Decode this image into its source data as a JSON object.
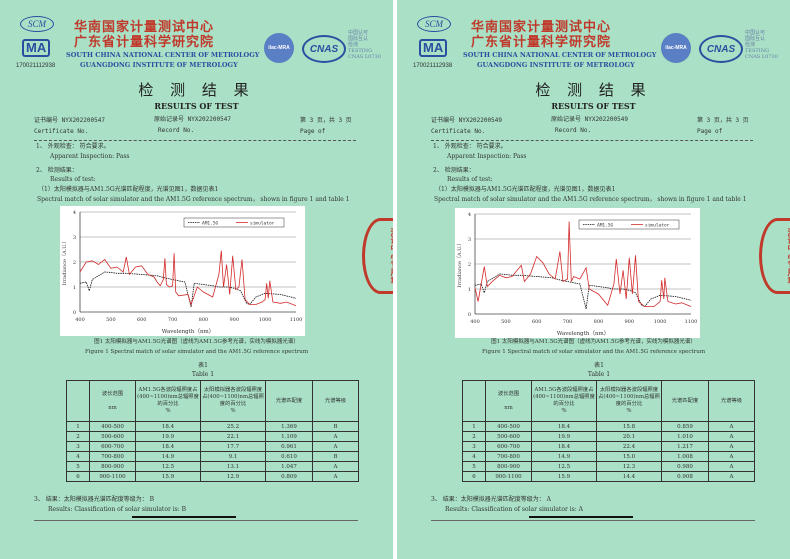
{
  "header": {
    "cn_line1": "华南国家计量测试中心",
    "cn_line2": "广东省计量科学研究院",
    "en_line1": "SOUTH CHINA NATIONAL CENTER OF METROLOGY",
    "en_line2": "GUANGDONG INSTITUTE OF METROLOGY",
    "scm_logo": "SCM",
    "ma_logo": "MA",
    "registration_no": "170021112938",
    "ilac_logo": "ilac-MRA",
    "cnas_logo": "CNAS",
    "cnas_text": "中国认可\n国际互认\n检测\nTESTING\nCNAS L0730",
    "stamp_text": "测试中心专用章",
    "colors": {
      "background": "#a9e0c6",
      "brand_red": "#c0392b",
      "brand_blue": "#2a4fa0"
    }
  },
  "pages": [
    {
      "title_cn": "检 测 结 果",
      "title_en": "RESULTS OF TEST",
      "cert_label_cn": "证书编号 NYX202200547",
      "cert_label_en": "Certificate No.",
      "record_label_cn": "原始记录号 NYX202200547",
      "record_label_en": "Record No.",
      "page_cn": "第 3 页，共 3 页",
      "page_en": "Page    of",
      "item1_cn": "1、 外观检查：   符合要求。",
      "item1_en": "Apparent Inspection:  Pass",
      "item2_cn": "2、 检测结果：",
      "item2_en": "Results of test:",
      "item2_sub_cn": "（1）太阳模拟器与AM1.5G光谱匹配程度，光谱见图1，数据见表1",
      "item2_sub_en": "Spectral match  of solar simulator and the AM1.5G reference spectrum， shown in figure 1 and table 1",
      "fig_caption_cn": "图1 太阳模拟器与AM1.5G光谱图（虚线为AM1.5G参考光谱，实线为模拟器光谱）",
      "fig_caption_en": "Figure 1  Spectral match  of solar simulator and the AM1.5G reference spectrum",
      "table_title_cn": "表1",
      "table_title_en": "Table 1",
      "table_headers": [
        "",
        "波长范围\n\nnm",
        "AM1.5G各波段辐照度占(400~1100)nm总辐照度的百分比\n%",
        "太阳模拟器各波段辐照度占(400~1100)nm总辐照度的百分比\n%",
        "光谱匹配度",
        "光谱等级"
      ],
      "table_rows": [
        [
          "1",
          "400-500",
          "18.4",
          "25.2",
          "1.369",
          "B"
        ],
        [
          "2",
          "500-600",
          "19.9",
          "22.1",
          "1.109",
          "A"
        ],
        [
          "3",
          "600-700",
          "18.4",
          "17.7",
          "0.961",
          "A"
        ],
        [
          "4",
          "700-800",
          "14.9",
          "9.1",
          "0.610",
          "B"
        ],
        [
          "5",
          "800-900",
          "12.5",
          "13.1",
          "1.047",
          "A"
        ],
        [
          "6",
          "900-1100",
          "15.9",
          "12.9",
          "0.809",
          "A"
        ]
      ],
      "result_cn": "3、 结果：太阳模拟器光谱匹配度等级为：     B",
      "result_en": "Results:  Classification of solar simulator is:   B"
    },
    {
      "title_cn": "检 测 结 果",
      "title_en": "RESULTS OF TEST",
      "cert_label_cn": "证书编号 NYX202200549",
      "cert_label_en": "Certificate No.",
      "record_label_cn": "原始记录号 NYX202200549",
      "record_label_en": "Record No.",
      "page_cn": "第 3 页，共 3 页",
      "page_en": "Page    of",
      "item1_cn": "1、 外观检查：   符合要求。",
      "item1_en": "Apparent Inspection:  Pass",
      "item2_cn": "2、 检测结果：",
      "item2_en": "Results of test:",
      "item2_sub_cn": "（1）太阳模拟器与AM1.5G光谱匹配程度，光谱见图1，数据见表1",
      "item2_sub_en": "Spectral match  of solar simulator and the AM1.5G reference spectrum， shown in figure 1 and table 1",
      "fig_caption_cn": "图1 太阳模拟器与AM1.5G光谱图（虚线为AM1.5G参考光谱，实线为模拟器光谱）",
      "fig_caption_en": "Figure 1  Spectral match  of solar simulator and the AM1.5G reference spectrum",
      "table_title_cn": "表1",
      "table_title_en": "Table 1",
      "table_headers": [
        "",
        "波长范围\n\nnm",
        "AM1.5G各波段辐照度占(400~1100)nm总辐照度的百分比\n%",
        "太阳模拟器各波段辐照度占(400~1100)nm总辐照度的百分比\n%",
        "光谱匹配度",
        "光谱等级"
      ],
      "table_rows": [
        [
          "1",
          "400-500",
          "18.4",
          "15.8",
          "0.859",
          "A"
        ],
        [
          "2",
          "500-600",
          "19.9",
          "20.1",
          "1.010",
          "A"
        ],
        [
          "3",
          "600-700",
          "18.4",
          "22.4",
          "1.217",
          "A"
        ],
        [
          "4",
          "700-800",
          "14.9",
          "15.0",
          "1.008",
          "A"
        ],
        [
          "5",
          "800-900",
          "12.5",
          "12.3",
          "0.980",
          "A"
        ],
        [
          "6",
          "900-1100",
          "15.9",
          "14.4",
          "0.908",
          "A"
        ]
      ],
      "result_cn": "3、 结果：太阳模拟器光谱匹配度等级为：     A",
      "result_en": "Results:  Classification of solar simulator is:   A"
    }
  ],
  "chart_data": [
    {
      "type": "line",
      "xlabel": "Wavelength（nm）",
      "ylabel": "Irradiance（A.U.）",
      "xlim": [
        400,
        1100
      ],
      "ylim": [
        0,
        4
      ],
      "xticks": [
        400,
        500,
        600,
        700,
        800,
        900,
        1000,
        1100
      ],
      "yticks": [
        0,
        1,
        2,
        3,
        4
      ],
      "grid": "horizontal",
      "legend": "top-right",
      "series": [
        {
          "name": "AM1.5G",
          "style": "dashed",
          "color": "#111111",
          "x": [
            400,
            420,
            430,
            440,
            460,
            480,
            500,
            520,
            550,
            600,
            650,
            680,
            700,
            720,
            740,
            760,
            770,
            800,
            830,
            850,
            880,
            900,
            920,
            940,
            950,
            970,
            1000,
            1050,
            1100
          ],
          "y": [
            1.15,
            1.2,
            0.85,
            1.3,
            1.45,
            1.6,
            1.58,
            1.55,
            1.55,
            1.5,
            1.45,
            1.35,
            1.3,
            1.25,
            1.2,
            0.2,
            1.15,
            1.1,
            1.05,
            1.0,
            1.0,
            0.95,
            0.85,
            0.35,
            0.3,
            0.6,
            0.75,
            0.7,
            0.55
          ]
        },
        {
          "name": "simulator",
          "style": "solid",
          "color": "#d42a2a",
          "x": [
            400,
            420,
            440,
            460,
            480,
            500,
            520,
            540,
            550,
            560,
            580,
            600,
            620,
            640,
            650,
            660,
            670,
            675,
            680,
            690,
            700,
            705,
            710,
            720,
            750,
            760,
            780,
            800,
            830,
            850,
            858,
            865,
            875,
            885,
            895,
            905,
            915,
            925,
            935,
            950,
            970,
            990,
            1000,
            1005,
            1010,
            1015,
            1025,
            1050,
            1070,
            1100
          ],
          "y": [
            1.6,
            2.0,
            2.05,
            1.9,
            2.1,
            1.75,
            1.8,
            1.6,
            2.2,
            1.5,
            1.8,
            1.85,
            1.5,
            1.4,
            1.2,
            1.05,
            1.3,
            2.15,
            1.1,
            1.0,
            1.05,
            2.35,
            0.8,
            0.65,
            0.7,
            0.3,
            1.0,
            0.8,
            0.6,
            1.5,
            2.45,
            1.0,
            1.9,
            0.7,
            2.25,
            0.9,
            1.0,
            2.1,
            0.5,
            0.3,
            0.3,
            0.4,
            0.5,
            1.15,
            0.55,
            1.25,
            0.4,
            0.35,
            0.4,
            0.25
          ]
        }
      ]
    },
    {
      "type": "line",
      "xlabel": "Wavelength（nm）",
      "ylabel": "Irradiance（A.U.）",
      "xlim": [
        400,
        1100
      ],
      "ylim": [
        0,
        4
      ],
      "xticks": [
        400,
        500,
        600,
        700,
        800,
        900,
        1000,
        1100
      ],
      "yticks": [
        0,
        1,
        2,
        3,
        4
      ],
      "grid": "horizontal",
      "legend": "top-right",
      "series": [
        {
          "name": "AM1.5G",
          "style": "dashed",
          "color": "#111111",
          "x": [
            400,
            420,
            430,
            440,
            460,
            480,
            500,
            520,
            550,
            600,
            650,
            680,
            700,
            720,
            740,
            760,
            770,
            800,
            830,
            850,
            880,
            900,
            920,
            940,
            950,
            970,
            1000,
            1050,
            1100
          ],
          "y": [
            1.15,
            1.2,
            0.85,
            1.3,
            1.45,
            1.6,
            1.58,
            1.55,
            1.55,
            1.5,
            1.45,
            1.35,
            1.3,
            1.25,
            1.2,
            0.2,
            1.15,
            1.1,
            1.05,
            1.0,
            1.0,
            0.95,
            0.85,
            0.35,
            0.3,
            0.6,
            0.75,
            0.7,
            0.55
          ]
        },
        {
          "name": "simulator",
          "style": "solid",
          "color": "#d42a2a",
          "x": [
            400,
            410,
            420,
            430,
            440,
            460,
            480,
            500,
            520,
            550,
            560,
            580,
            600,
            620,
            640,
            660,
            675,
            685,
            700,
            705,
            712,
            720,
            740,
            760,
            770,
            800,
            830,
            850,
            858,
            870,
            880,
            890,
            900,
            910,
            920,
            930,
            950,
            980,
            1000,
            1005,
            1012,
            1015,
            1025,
            1050,
            1070,
            1100
          ],
          "y": [
            1.05,
            0.5,
            1.2,
            1.9,
            1.1,
            1.35,
            1.55,
            1.45,
            1.5,
            1.95,
            1.3,
            1.6,
            2.3,
            2.05,
            1.6,
            1.4,
            2.5,
            1.3,
            1.4,
            3.7,
            1.3,
            1.5,
            1.4,
            1.85,
            1.0,
            0.8,
            0.35,
            1.2,
            2.2,
            0.8,
            1.75,
            0.6,
            2.25,
            0.8,
            2.35,
            0.5,
            0.3,
            0.3,
            0.5,
            1.35,
            0.6,
            1.45,
            0.5,
            0.4,
            0.45,
            0.3
          ]
        }
      ]
    }
  ]
}
